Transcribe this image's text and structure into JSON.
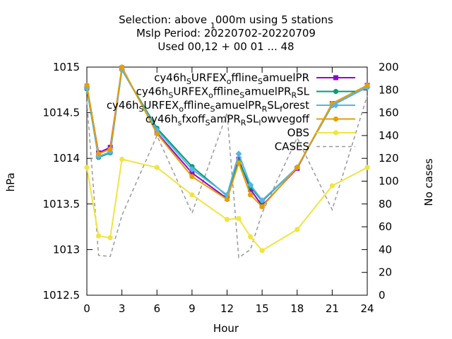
{
  "chart_data": {
    "type": "line",
    "title_lines": [
      "Selection: above 1000m using     5 stations",
      "Mslp   Period: 20220702-20220709",
      "Used  00,12  + 00 01 ... 48"
    ],
    "title_subscripts": [
      "1",
      "",
      ""
    ],
    "xlabel": "Hour",
    "ylabel": "hPa",
    "y2label": "No cases",
    "xlim": [
      0,
      24
    ],
    "ylim": [
      1012.5,
      1015
    ],
    "y2lim": [
      0,
      200
    ],
    "xticks": [
      "0",
      "3",
      "6",
      "9",
      "12",
      "15",
      "18",
      "21",
      "24"
    ],
    "yticks": [
      "1012.5",
      "1013",
      "1013.5",
      "1014",
      "1014.5",
      "1015"
    ],
    "y2ticks": [
      "0",
      "20",
      "40",
      "60",
      "80",
      "100",
      "120",
      "140",
      "160",
      "180",
      "200"
    ],
    "grid": false,
    "legend_position": "top-right",
    "series": [
      {
        "name": "cy46h_SURFEX_offline_samuelPR",
        "legend_parts": [
          [
            "cy46h",
            "n"
          ],
          [
            "S",
            "s"
          ],
          [
            "URFEX",
            "n"
          ],
          [
            "o",
            "s"
          ],
          [
            "ffline",
            "n"
          ],
          [
            "S",
            "s"
          ],
          [
            "amuelPR",
            "n"
          ]
        ],
        "color": "#9400d3",
        "marker": "square",
        "axis": "y",
        "x": [
          0,
          1,
          2,
          3,
          6,
          9,
          12,
          13,
          14,
          15,
          18,
          21,
          24
        ],
        "values": [
          1014.79,
          1014.06,
          1014.12,
          1014.99,
          1014.28,
          1013.84,
          1013.56,
          1013.99,
          1013.66,
          1013.48,
          1013.89,
          1014.6,
          1014.8
        ]
      },
      {
        "name": "cy46h_SURFEX_offline_samuelPR_RSL",
        "legend_parts": [
          [
            "cy46h",
            "n"
          ],
          [
            "S",
            "s"
          ],
          [
            "URFEX",
            "n"
          ],
          [
            "o",
            "s"
          ],
          [
            "ffline",
            "n"
          ],
          [
            "S",
            "s"
          ],
          [
            "amuelPR",
            "n"
          ],
          [
            "R",
            "s"
          ],
          [
            "SL",
            "n"
          ]
        ],
        "color": "#009e73",
        "marker": "circle",
        "axis": "y",
        "x": [
          0,
          1,
          2,
          3,
          6,
          9,
          12,
          13,
          14,
          15,
          18,
          21,
          24
        ],
        "values": [
          1014.76,
          1014.01,
          1014.06,
          1014.97,
          1014.33,
          1013.91,
          1013.59,
          1013.97,
          1013.69,
          1013.53,
          1013.9,
          1014.58,
          1014.78
        ]
      },
      {
        "name": "cy46h_SURFEX_offline_samuelPR_RSL_forest",
        "legend_parts": [
          [
            "cy46h",
            "n"
          ],
          [
            "S",
            "s"
          ],
          [
            "URFEX",
            "n"
          ],
          [
            "o",
            "s"
          ],
          [
            "ffline",
            "n"
          ],
          [
            "S",
            "s"
          ],
          [
            "amuelPR",
            "n"
          ],
          [
            "R",
            "s"
          ],
          [
            "SL",
            "n"
          ],
          [
            "f",
            "s"
          ],
          [
            "orest",
            "n"
          ]
        ],
        "color": "#56b4e9",
        "marker": "diamond",
        "axis": "y",
        "x": [
          0,
          1,
          2,
          3,
          6,
          9,
          12,
          13,
          14,
          15,
          18,
          21,
          24
        ],
        "values": [
          1014.77,
          1014.02,
          1014.07,
          1014.97,
          1014.31,
          1013.88,
          1013.6,
          1014.05,
          1013.71,
          1013.54,
          1013.9,
          1014.58,
          1014.78
        ]
      },
      {
        "name": "cy46h_sfxoff_samPR_RSL_lowvegoff",
        "legend_parts": [
          [
            "cy46h",
            "n"
          ],
          [
            "s",
            "s"
          ],
          [
            "fxoff",
            "n"
          ],
          [
            "S",
            "s"
          ],
          [
            "amPR",
            "n"
          ],
          [
            "R",
            "s"
          ],
          [
            "SL",
            "n"
          ],
          [
            "l",
            "s"
          ],
          [
            "owvegoff",
            "n"
          ]
        ],
        "color": "#e69f00",
        "marker": "circle",
        "axis": "y",
        "x": [
          0,
          1,
          2,
          3,
          6,
          9,
          12,
          13,
          14,
          15,
          18,
          21,
          24
        ],
        "values": [
          1014.8,
          1014.05,
          1014.1,
          1015.0,
          1014.27,
          1013.8,
          1013.55,
          1013.95,
          1013.6,
          1013.47,
          1013.9,
          1014.6,
          1014.8
        ]
      },
      {
        "name": "OBS",
        "legend_parts": [
          [
            "OBS",
            "n"
          ]
        ],
        "color": "#f0e442",
        "marker": "circle",
        "axis": "y",
        "x": [
          0,
          1,
          2,
          3,
          6,
          9,
          12,
          13,
          14,
          15,
          18,
          21,
          24
        ],
        "values": [
          1013.9,
          1013.15,
          1013.13,
          1013.99,
          1013.9,
          1013.6,
          1013.33,
          1013.34,
          1013.14,
          1012.99,
          1013.22,
          1013.7,
          1013.9
        ]
      },
      {
        "name": "CASES",
        "legend_parts": [
          [
            "CASES",
            "n"
          ]
        ],
        "color": "#999999",
        "dash": "dashed",
        "marker": "none",
        "axis": "y2",
        "x": [
          0,
          1,
          2,
          3,
          6,
          9,
          12,
          13,
          14,
          15,
          18,
          21,
          24
        ],
        "values": [
          170,
          35,
          34,
          70,
          140,
          72,
          160,
          33,
          40,
          72,
          138,
          75,
          175
        ]
      }
    ]
  }
}
